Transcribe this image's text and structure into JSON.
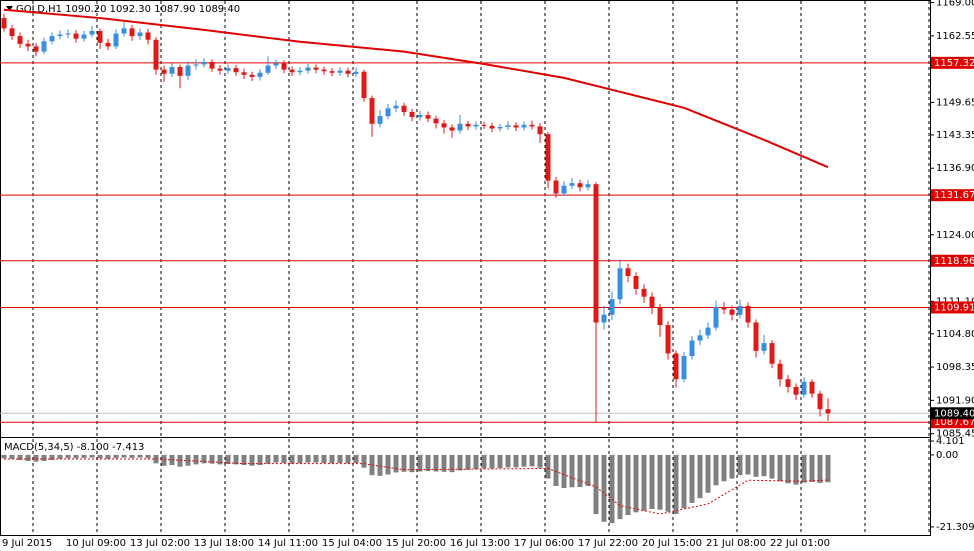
{
  "chart_data": {
    "type": "candlestick",
    "title": "GOLD,H1  1090.20 1092.30 1087.90 1089.40",
    "categories": [
      "9 Jul 2015",
      null,
      null,
      null,
      null,
      null,
      null,
      null,
      "10 Jul 09:00",
      null,
      null,
      null,
      null,
      null,
      null,
      null,
      "13 Jul 02:00",
      null,
      null,
      null,
      null,
      null,
      null,
      null,
      "13 Jul 18:00",
      null,
      null,
      null,
      null,
      null,
      null,
      null,
      "14 Jul 11:00",
      null,
      null,
      null,
      null,
      null,
      null,
      null,
      "15 Jul 04:00",
      null,
      null,
      null,
      null,
      null,
      null,
      null,
      "15 Jul 20:00",
      null,
      null,
      null,
      null,
      null,
      null,
      null,
      "16 Jul 13:00",
      null,
      null,
      null,
      null,
      null,
      null,
      null,
      "17 Jul 06:00",
      null,
      null,
      null,
      null,
      null,
      null,
      null,
      "17 Jul 22:00",
      null,
      null,
      null,
      null,
      null,
      null,
      null,
      "20 Jul 15:00",
      null,
      null,
      null,
      null,
      null,
      null,
      null,
      "21 Jul 08:00",
      null,
      null,
      null,
      null,
      null,
      null,
      null,
      "22 Jul 01:00",
      null,
      null,
      null,
      null,
      null,
      null,
      null
    ],
    "open": [
      1166.0,
      1164.0,
      1162.5,
      1161.0,
      1160.5,
      1159.5,
      1161.5,
      1162.5,
      1162.8,
      1163.0,
      1162.0,
      1162.8,
      1163.5,
      1161.2,
      1160.5,
      1163.0,
      1164.0,
      1162.5,
      1163.2,
      1161.8,
      1156.0,
      1155.2,
      1156.5,
      1154.8,
      1156.8,
      1157.0,
      1157.5,
      1156.2,
      1155.8,
      1156.3,
      1155.5,
      1155.0,
      1154.6,
      1155.4,
      1156.8,
      1157.2,
      1156.0,
      1155.5,
      1155.8,
      1156.4,
      1156.0,
      1155.7,
      1155.4,
      1155.8,
      1155.2,
      1155.6,
      1150.5,
      1145.5,
      1147.0,
      1148.5,
      1149.0,
      1147.8,
      1146.8,
      1147.2,
      1146.5,
      1145.6,
      1144.8,
      1144.2,
      1145.5,
      1145.0,
      1145.3,
      1145.1,
      1144.6,
      1144.9,
      1145.2,
      1144.8,
      1145.3,
      1145.0,
      1143.5,
      1134.5,
      1132.0,
      1133.5,
      1134.0,
      1133.2,
      1133.8,
      1107.0,
      1108.5,
      1111.5,
      1117.5,
      1116.0,
      1113.5,
      1112.0,
      1110.0,
      1106.5,
      1101.0,
      1096.0,
      1100.5,
      1103.5,
      1104.5,
      1106.0,
      1110.0,
      1109.5,
      1108.5,
      1110.2,
      1107.0,
      1101.5,
      1103.0,
      1099.0,
      1096.0,
      1094.5,
      1093.0,
      1095.5,
      1093.2,
      1090.2
    ],
    "high": [
      1166.8,
      1164.6,
      1163.2,
      1161.8,
      1161.2,
      1162.2,
      1163.2,
      1163.6,
      1163.8,
      1163.7,
      1163.5,
      1164.5,
      1164.0,
      1162.0,
      1163.8,
      1165.2,
      1164.6,
      1164.0,
      1163.9,
      1162.3,
      1156.8,
      1157.3,
      1157.0,
      1157.6,
      1158.0,
      1158.2,
      1158.0,
      1156.9,
      1157.0,
      1156.9,
      1156.2,
      1155.6,
      1156.1,
      1158.6,
      1158.0,
      1157.8,
      1156.6,
      1156.5,
      1157.1,
      1157.0,
      1156.6,
      1156.3,
      1156.5,
      1156.4,
      1156.4,
      1156.0,
      1151.0,
      1148.2,
      1149.4,
      1150.0,
      1149.6,
      1148.4,
      1148.0,
      1147.9,
      1147.1,
      1146.2,
      1145.4,
      1147.2,
      1146.1,
      1146.0,
      1145.9,
      1145.7,
      1145.5,
      1146.0,
      1145.8,
      1146.0,
      1146.1,
      1145.6,
      1143.9,
      1135.2,
      1134.4,
      1135.0,
      1134.7,
      1134.6,
      1134.2,
      1110.2,
      1113.0,
      1119.2,
      1118.4,
      1116.7,
      1114.4,
      1112.8,
      1110.6,
      1107.2,
      1101.6,
      1101.3,
      1104.4,
      1105.6,
      1107.0,
      1111.2,
      1111.0,
      1110.3,
      1111.4,
      1110.9,
      1107.6,
      1104.6,
      1103.6,
      1099.8,
      1096.8,
      1095.2,
      1096.4,
      1096.0,
      1093.8,
      1092.3
    ],
    "low": [
      1163.4,
      1161.8,
      1160.2,
      1159.6,
      1158.6,
      1159.0,
      1160.9,
      1161.9,
      1162.1,
      1161.2,
      1161.4,
      1162.2,
      1160.0,
      1159.8,
      1160.0,
      1162.4,
      1161.6,
      1161.8,
      1160.9,
      1155.0,
      1153.6,
      1154.5,
      1152.4,
      1154.0,
      1156.0,
      1156.4,
      1155.6,
      1155.0,
      1155.2,
      1154.8,
      1154.2,
      1153.8,
      1153.9,
      1155.0,
      1156.1,
      1155.3,
      1154.8,
      1154.9,
      1155.2,
      1155.3,
      1155.0,
      1154.7,
      1154.8,
      1154.5,
      1154.6,
      1149.8,
      1143.0,
      1144.8,
      1146.4,
      1147.8,
      1147.0,
      1146.0,
      1146.1,
      1145.8,
      1144.6,
      1143.6,
      1142.8,
      1143.6,
      1144.3,
      1144.4,
      1144.5,
      1143.9,
      1144.0,
      1144.3,
      1144.1,
      1144.2,
      1144.4,
      1141.8,
      1133.0,
      1131.2,
      1131.5,
      1132.8,
      1132.4,
      1132.6,
      1087.67,
      1105.6,
      1107.4,
      1110.6,
      1114.8,
      1112.4,
      1110.8,
      1108.6,
      1104.2,
      1099.8,
      1094.4,
      1095.4,
      1099.8,
      1102.6,
      1103.8,
      1105.4,
      1108.6,
      1107.4,
      1107.8,
      1106.0,
      1100.2,
      1100.8,
      1098.2,
      1094.6,
      1093.4,
      1092.0,
      1092.4,
      1092.4,
      1088.8,
      1087.9
    ],
    "close": [
      1164.0,
      1162.5,
      1161.0,
      1160.5,
      1159.5,
      1161.5,
      1162.5,
      1162.8,
      1163.0,
      1162.0,
      1162.8,
      1163.5,
      1161.2,
      1160.5,
      1163.0,
      1164.0,
      1162.5,
      1163.2,
      1161.8,
      1156.0,
      1155.2,
      1156.5,
      1154.8,
      1156.8,
      1157.0,
      1157.5,
      1156.2,
      1155.8,
      1156.3,
      1155.5,
      1155.0,
      1154.6,
      1155.4,
      1156.8,
      1157.2,
      1156.0,
      1155.5,
      1155.8,
      1156.4,
      1156.0,
      1155.7,
      1155.4,
      1155.8,
      1155.2,
      1155.6,
      1150.5,
      1145.5,
      1147.0,
      1148.5,
      1149.0,
      1147.8,
      1146.8,
      1147.2,
      1146.5,
      1145.6,
      1144.8,
      1144.2,
      1145.5,
      1145.0,
      1145.3,
      1145.1,
      1144.6,
      1144.9,
      1145.2,
      1144.8,
      1145.3,
      1145.0,
      1143.5,
      1134.5,
      1132.0,
      1133.5,
      1134.0,
      1133.2,
      1133.8,
      1107.0,
      1108.5,
      1111.5,
      1117.5,
      1116.0,
      1113.5,
      1112.0,
      1110.0,
      1106.5,
      1101.0,
      1096.0,
      1100.5,
      1103.5,
      1104.5,
      1106.0,
      1110.0,
      1109.5,
      1108.5,
      1110.2,
      1107.0,
      1101.5,
      1103.0,
      1099.0,
      1096.0,
      1094.5,
      1093.0,
      1095.5,
      1093.2,
      1090.2,
      1089.4
    ],
    "up_color": "#3a8ee0",
    "down_color": "#e01818",
    "ma": {
      "x": [
        0,
        12,
        25,
        37,
        50,
        60,
        70,
        77,
        85,
        95,
        103
      ],
      "values": [
        1167.6,
        1166.0,
        1163.7,
        1161.4,
        1159.5,
        1157.1,
        1154.4,
        1151.7,
        1148.6,
        1142.4,
        1137.1
      ],
      "color": "#e00000"
    },
    "ylim": [
      1084.8,
      1169.5
    ],
    "yticks": [
      {
        "value": 1169,
        "label": "1169.00"
      },
      1162.55,
      1149.65,
      1143.35,
      {
        "value": 1136.9,
        "label": "1136.90"
      },
      {
        "value": 1124,
        "label": "1124.00"
      },
      {
        "value": 1111.1,
        "label": "1111.10"
      },
      {
        "value": 1104.8,
        "label": "1104.80"
      },
      1098.35,
      {
        "value": 1091.9,
        "label": "1091.90"
      },
      1085.45
    ],
    "levels": [
      1157.32,
      1131.67,
      1118.96,
      1109.91,
      1087.67
    ],
    "level_color": "#e00000",
    "current_price": {
      "value": 1089.4,
      "label": "1089.40"
    },
    "macd": {
      "title": "MACD(5,34,5) -8.100 -7.413",
      "values": [
        -1.0,
        -1.2,
        -1.5,
        -1.8,
        -2.0,
        -1.8,
        -1.5,
        -1.2,
        -1.0,
        -1.0,
        -0.9,
        -0.8,
        -1.0,
        -1.2,
        -1.0,
        -0.8,
        -0.9,
        -0.8,
        -1.0,
        -2.5,
        -3.2,
        -3.0,
        -3.5,
        -3.2,
        -2.8,
        -2.5,
        -2.6,
        -2.8,
        -2.7,
        -2.8,
        -3.0,
        -3.2,
        -3.0,
        -2.6,
        -2.3,
        -2.4,
        -2.6,
        -2.5,
        -2.3,
        -2.3,
        -2.4,
        -2.5,
        -2.4,
        -2.5,
        -2.4,
        -3.8,
        -6.0,
        -6.2,
        -5.8,
        -5.2,
        -5.0,
        -5.1,
        -4.9,
        -4.8,
        -4.9,
        -5.0,
        -5.1,
        -4.6,
        -4.4,
        -4.2,
        -4.0,
        -4.0,
        -3.9,
        -3.7,
        -3.7,
        -3.5,
        -3.4,
        -3.8,
        -7.0,
        -9.2,
        -9.8,
        -9.6,
        -9.5,
        -9.2,
        -17.5,
        -19.8,
        -20.2,
        -19.0,
        -17.8,
        -17.0,
        -16.5,
        -16.0,
        -16.2,
        -16.8,
        -17.5,
        -15.8,
        -14.2,
        -12.8,
        -11.2,
        -9.0,
        -7.8,
        -7.0,
        -6.0,
        -5.8,
        -6.5,
        -6.3,
        -7.0,
        -7.8,
        -8.4,
        -8.8,
        -8.2,
        -8.0,
        -8.3,
        -8.1
      ],
      "color": "#808080",
      "signal": {
        "x": [
          0,
          19,
          30,
          45,
          50,
          68,
          74,
          77,
          82,
          88,
          93,
          100,
          103
        ],
        "values": [
          -1.2,
          -1.2,
          -2.6,
          -2.6,
          -4.4,
          -4.0,
          -9.5,
          -15.0,
          -17.5,
          -14.5,
          -7.5,
          -7.8,
          -7.413
        ],
        "color": "#e00000"
      },
      "ylim": [
        -23.7,
        5.0
      ],
      "yticks": [
        4.101,
        {
          "value": 0,
          "label": "0.00"
        },
        -21.309
      ]
    }
  }
}
